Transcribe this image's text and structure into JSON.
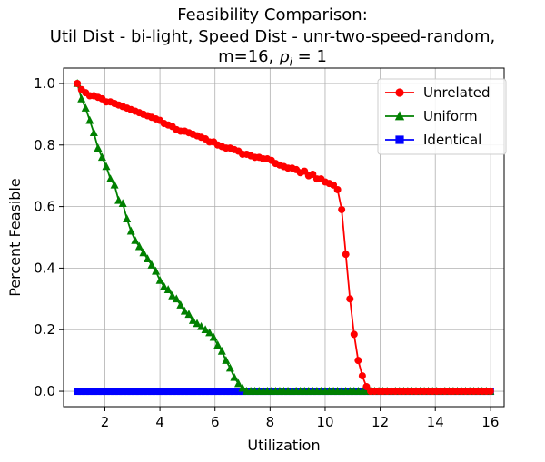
{
  "chart_data": {
    "type": "line",
    "title_line1": "Feasibility Comparison:",
    "title_line2": "Util Dist - bi-light, Speed Dist - unr-two-speed-random,",
    "title_line3_prefix": "m=16, ",
    "title_line3_math": "p",
    "title_line3_sub": "i",
    "title_line3_suffix": " = 1",
    "xlabel": "Utilization",
    "ylabel": "Percent Feasible",
    "xlim": [
      0.5,
      16.5
    ],
    "ylim": [
      -0.05,
      1.05
    ],
    "xticks": [
      2,
      4,
      6,
      8,
      10,
      12,
      14,
      16
    ],
    "xtick_labels": [
      "2",
      "4",
      "6",
      "8",
      "10",
      "12",
      "14",
      "16"
    ],
    "yticks": [
      0.0,
      0.2,
      0.4,
      0.6,
      0.8,
      1.0
    ],
    "ytick_labels": [
      "0.0",
      "0.2",
      "0.4",
      "0.6",
      "0.8",
      "1.0"
    ],
    "grid": true,
    "legend_position": "top-right",
    "series": [
      {
        "name": "Unrelated",
        "color": "#ff0000",
        "marker": "circle",
        "x": [
          1.0,
          1.15,
          1.3,
          1.45,
          1.6,
          1.75,
          1.9,
          2.05,
          2.2,
          2.35,
          2.5,
          2.65,
          2.8,
          2.95,
          3.1,
          3.25,
          3.4,
          3.55,
          3.7,
          3.85,
          4.0,
          4.15,
          4.3,
          4.45,
          4.6,
          4.75,
          4.9,
          5.05,
          5.2,
          5.35,
          5.5,
          5.65,
          5.8,
          5.95,
          6.1,
          6.25,
          6.4,
          6.55,
          6.7,
          6.85,
          7.0,
          7.15,
          7.3,
          7.45,
          7.6,
          7.75,
          7.9,
          8.05,
          8.2,
          8.35,
          8.5,
          8.65,
          8.8,
          8.95,
          9.1,
          9.25,
          9.4,
          9.55,
          9.7,
          9.85,
          10.0,
          10.15,
          10.3,
          10.45,
          10.6,
          10.75,
          10.9,
          11.05,
          11.2,
          11.35,
          11.5,
          11.65,
          11.8,
          11.95,
          12.1,
          12.25,
          12.4,
          12.55,
          12.7,
          12.85,
          13.0,
          13.15,
          13.3,
          13.45,
          13.6,
          13.75,
          13.9,
          14.05,
          14.2,
          14.35,
          14.5,
          14.65,
          14.8,
          14.95,
          15.1,
          15.25,
          15.4,
          15.55,
          15.7,
          15.85,
          16.0
        ],
        "y": [
          1.0,
          0.98,
          0.97,
          0.96,
          0.96,
          0.955,
          0.95,
          0.94,
          0.94,
          0.935,
          0.93,
          0.925,
          0.92,
          0.915,
          0.91,
          0.905,
          0.9,
          0.895,
          0.89,
          0.885,
          0.88,
          0.87,
          0.865,
          0.86,
          0.85,
          0.845,
          0.845,
          0.84,
          0.835,
          0.83,
          0.825,
          0.82,
          0.81,
          0.81,
          0.8,
          0.795,
          0.79,
          0.79,
          0.785,
          0.78,
          0.77,
          0.77,
          0.765,
          0.76,
          0.76,
          0.755,
          0.755,
          0.75,
          0.74,
          0.735,
          0.73,
          0.725,
          0.725,
          0.72,
          0.71,
          0.715,
          0.7,
          0.705,
          0.69,
          0.69,
          0.68,
          0.675,
          0.67,
          0.655,
          0.59,
          0.445,
          0.3,
          0.185,
          0.1,
          0.05,
          0.015,
          0.0,
          0.0,
          0.0,
          0.0,
          0.0,
          0.0,
          0.0,
          0.0,
          0.0,
          0.0,
          0.0,
          0.0,
          0.0,
          0.0,
          0.0,
          0.0,
          0.0,
          0.0,
          0.0,
          0.0,
          0.0,
          0.0,
          0.0,
          0.0,
          0.0,
          0.0,
          0.0,
          0.0,
          0.0,
          0.0
        ]
      },
      {
        "name": "Uniform",
        "color": "#008000",
        "marker": "triangle",
        "x": [
          1.0,
          1.15,
          1.3,
          1.45,
          1.6,
          1.75,
          1.9,
          2.05,
          2.2,
          2.35,
          2.5,
          2.65,
          2.8,
          2.95,
          3.1,
          3.25,
          3.4,
          3.55,
          3.7,
          3.85,
          4.0,
          4.15,
          4.3,
          4.45,
          4.6,
          4.75,
          4.9,
          5.05,
          5.2,
          5.35,
          5.5,
          5.65,
          5.8,
          5.95,
          6.1,
          6.25,
          6.4,
          6.55,
          6.7,
          6.85,
          7.0,
          7.15,
          7.3,
          7.45,
          7.6,
          7.75,
          7.9,
          8.05,
          8.2,
          8.35,
          8.5,
          8.65,
          8.8,
          8.95,
          9.1,
          9.25,
          9.4,
          9.55,
          9.7,
          9.85,
          10.0,
          10.15,
          10.3,
          10.45,
          10.6,
          10.75,
          10.9,
          11.05,
          11.2,
          11.35,
          11.5,
          11.65,
          11.8,
          11.95,
          12.1,
          12.25,
          12.4,
          12.55,
          12.7,
          12.85,
          13.0,
          13.15,
          13.3,
          13.45,
          13.6,
          13.75,
          13.9,
          14.05,
          14.2,
          14.35,
          14.5,
          14.65,
          14.8,
          14.95,
          15.1,
          15.25,
          15.4,
          15.55,
          15.7,
          15.85,
          16.0
        ],
        "y": [
          1.0,
          0.95,
          0.92,
          0.88,
          0.84,
          0.79,
          0.76,
          0.73,
          0.69,
          0.67,
          0.62,
          0.61,
          0.56,
          0.52,
          0.49,
          0.47,
          0.45,
          0.43,
          0.41,
          0.39,
          0.36,
          0.34,
          0.33,
          0.31,
          0.3,
          0.28,
          0.26,
          0.25,
          0.23,
          0.22,
          0.21,
          0.2,
          0.19,
          0.175,
          0.15,
          0.13,
          0.1,
          0.075,
          0.045,
          0.025,
          0.01,
          0.0,
          0.0,
          0.0,
          0.0,
          0.0,
          0.0,
          0.0,
          0.0,
          0.0,
          0.0,
          0.0,
          0.0,
          0.0,
          0.0,
          0.0,
          0.0,
          0.0,
          0.0,
          0.0,
          0.0,
          0.0,
          0.0,
          0.0,
          0.0,
          0.0,
          0.0,
          0.0,
          0.0,
          0.0,
          0.0,
          0.0,
          0.0,
          0.0,
          0.0,
          0.0,
          0.0,
          0.0,
          0.0,
          0.0,
          0.0,
          0.0,
          0.0,
          0.0,
          0.0,
          0.0,
          0.0,
          0.0,
          0.0,
          0.0,
          0.0,
          0.0,
          0.0,
          0.0,
          0.0,
          0.0,
          0.0,
          0.0,
          0.0,
          0.0,
          0.0
        ],
        "x_override_note": ""
      },
      {
        "name": "Identical",
        "color": "#0000ff",
        "marker": "square",
        "x": [
          1.0,
          1.15,
          1.3,
          1.45,
          1.6,
          1.75,
          1.9,
          2.05,
          2.2,
          2.35,
          2.5,
          2.65,
          2.8,
          2.95,
          3.1,
          3.25,
          3.4,
          3.55,
          3.7,
          3.85,
          4.0,
          4.15,
          4.3,
          4.45,
          4.6,
          4.75,
          4.9,
          5.05,
          5.2,
          5.35,
          5.5,
          5.65,
          5.8,
          5.95,
          6.1,
          6.25,
          6.4,
          6.55,
          6.7,
          6.85,
          7.0,
          7.15,
          7.3,
          7.45,
          7.6,
          7.75,
          7.9,
          8.05,
          8.2,
          8.35,
          8.5,
          8.65,
          8.8,
          8.95,
          9.1,
          9.25,
          9.4,
          9.55,
          9.7,
          9.85,
          10.0,
          10.15,
          10.3,
          10.45,
          10.6,
          10.75,
          10.9,
          11.05,
          11.2,
          11.35,
          11.5,
          11.65,
          11.8,
          11.95,
          12.1,
          12.25,
          12.4,
          12.55,
          12.7,
          12.85,
          13.0,
          13.15,
          13.3,
          13.45,
          13.6,
          13.75,
          13.9,
          14.05,
          14.2,
          14.35,
          14.5,
          14.65,
          14.8,
          14.95,
          15.1,
          15.25,
          15.4,
          15.55,
          15.7,
          15.85,
          16.0
        ],
        "y": [
          0.0,
          0.0,
          0.0,
          0.0,
          0.0,
          0.0,
          0.0,
          0.0,
          0.0,
          0.0,
          0.0,
          0.0,
          0.0,
          0.0,
          0.0,
          0.0,
          0.0,
          0.0,
          0.0,
          0.0,
          0.0,
          0.0,
          0.0,
          0.0,
          0.0,
          0.0,
          0.0,
          0.0,
          0.0,
          0.0,
          0.0,
          0.0,
          0.0,
          0.0,
          0.0,
          0.0,
          0.0,
          0.0,
          0.0,
          0.0,
          0.0,
          0.0,
          0.0,
          0.0,
          0.0,
          0.0,
          0.0,
          0.0,
          0.0,
          0.0,
          0.0,
          0.0,
          0.0,
          0.0,
          0.0,
          0.0,
          0.0,
          0.0,
          0.0,
          0.0,
          0.0,
          0.0,
          0.0,
          0.0,
          0.0,
          0.0,
          0.0,
          0.0,
          0.0,
          0.0,
          0.0,
          0.0,
          0.0,
          0.0,
          0.0,
          0.0,
          0.0,
          0.0,
          0.0,
          0.0,
          0.0,
          0.0,
          0.0,
          0.0,
          0.0,
          0.0,
          0.0,
          0.0,
          0.0,
          0.0,
          0.0,
          0.0,
          0.0,
          0.0,
          0.0,
          0.0,
          0.0,
          0.0,
          0.0,
          0.0,
          0.0
        ]
      }
    ]
  }
}
